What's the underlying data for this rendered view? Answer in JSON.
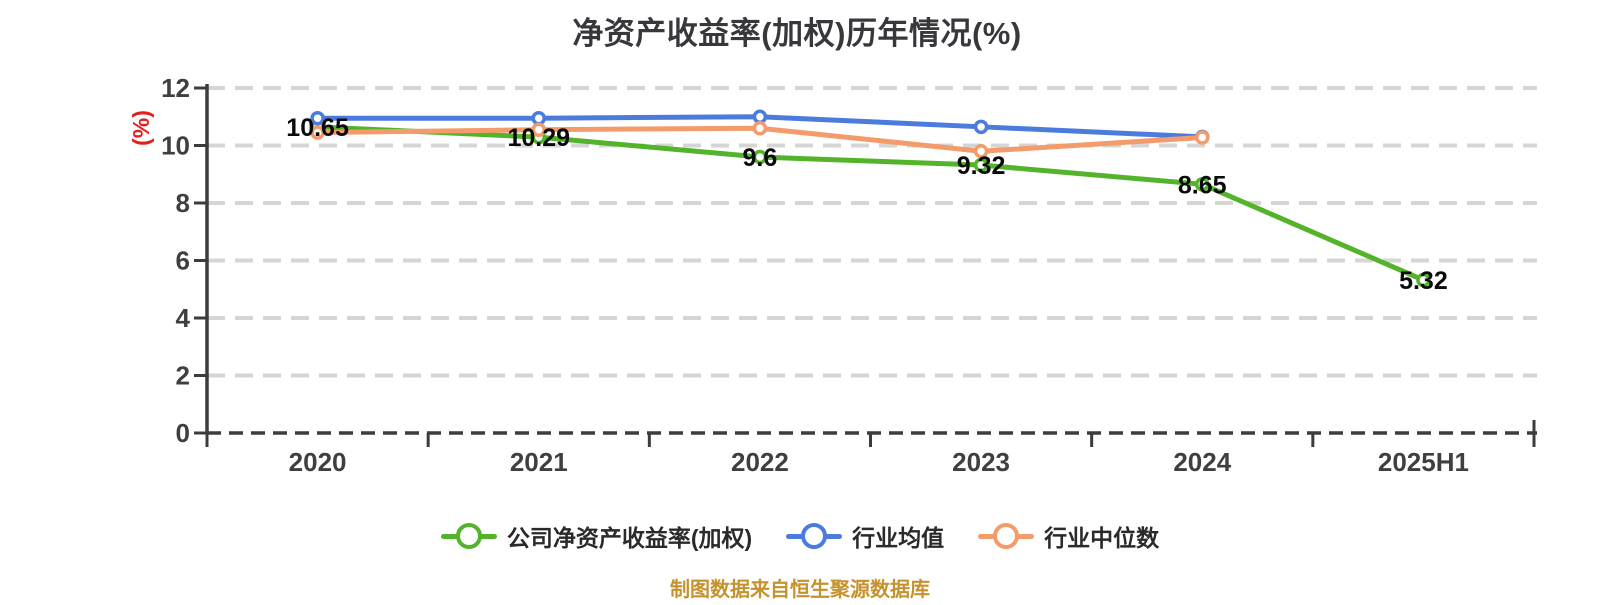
{
  "title": "净资产收益率(加权)历年情况(%)",
  "y_axis": {
    "unit_label": "(%)",
    "unit_color": "#E21E1E"
  },
  "footer": {
    "text": "制图数据来自恒生聚源数据库",
    "color": "#C6922D"
  },
  "chart_data": {
    "type": "line",
    "categories": [
      "2020",
      "2021",
      "2022",
      "2023",
      "2024",
      "2025H1"
    ],
    "series": [
      {
        "name": "公司净资产收益率(加权)",
        "color": "#53B42C",
        "values": [
          10.65,
          10.29,
          9.6,
          9.32,
          8.65,
          5.32
        ],
        "point_labels": [
          "10.65",
          "10.29",
          "9.6",
          "9.32",
          "8.65",
          "5.32"
        ]
      },
      {
        "name": "行业均值",
        "color": "#4C7BDE",
        "values": [
          10.95,
          10.95,
          11.0,
          10.65,
          10.3,
          null
        ]
      },
      {
        "name": "行业中位数",
        "color": "#F49B6B",
        "values": [
          10.45,
          10.55,
          10.6,
          9.8,
          10.28,
          null
        ]
      }
    ],
    "title": "净资产收益率(加权)历年情况(%)",
    "xlabel": "",
    "ylabel": "(%)",
    "ylim": [
      0,
      12
    ],
    "y_ticks": [
      0,
      2,
      4,
      6,
      8,
      10,
      12
    ],
    "grid": "horizontal dashed gray lines, dark dashed baseline",
    "legend_position": "bottom",
    "marker_style": "white-filled circle with series-colored ring",
    "colors": {
      "grid": "#D5D5D5",
      "axis": "#3C3C3C",
      "tick_label": "#3F3F3F",
      "data_label": "#0A0A0A"
    }
  }
}
